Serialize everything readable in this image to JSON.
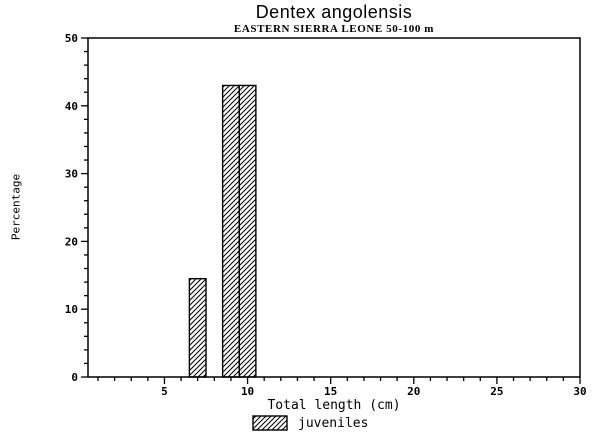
{
  "title": "Dentex angolensis",
  "subtitle": "EASTERN SIERRA LEONE 50-100 m",
  "chart_data": {
    "type": "bar",
    "title": "Dentex angolensis",
    "subtitle": "EASTERN SIERRA LEONE 50-100 m",
    "xlabel": "Total length (cm)",
    "ylabel": "Percentage",
    "xlim": [
      0.4,
      30
    ],
    "ylim": [
      0,
      50
    ],
    "x_major_ticks": [
      5,
      10,
      15,
      20,
      25,
      30
    ],
    "x_minor_step": 1,
    "y_major_ticks": [
      0,
      10,
      20,
      30,
      40,
      50
    ],
    "y_minor_step": 2,
    "grid": false,
    "bar_width": 1,
    "bars": [
      {
        "x": 7,
        "value": 14.5
      },
      {
        "x": 9,
        "value": 43
      },
      {
        "x": 10,
        "value": 43
      }
    ],
    "series_name": "juveniles",
    "legend": [
      {
        "label": "juveniles",
        "pattern": "diagonal-hatch"
      }
    ],
    "legend_position": "bottom-center",
    "colors": {
      "stroke": "#000000",
      "background": "#ffffff",
      "bar_fill_pattern": "diagonal-hatch"
    }
  }
}
